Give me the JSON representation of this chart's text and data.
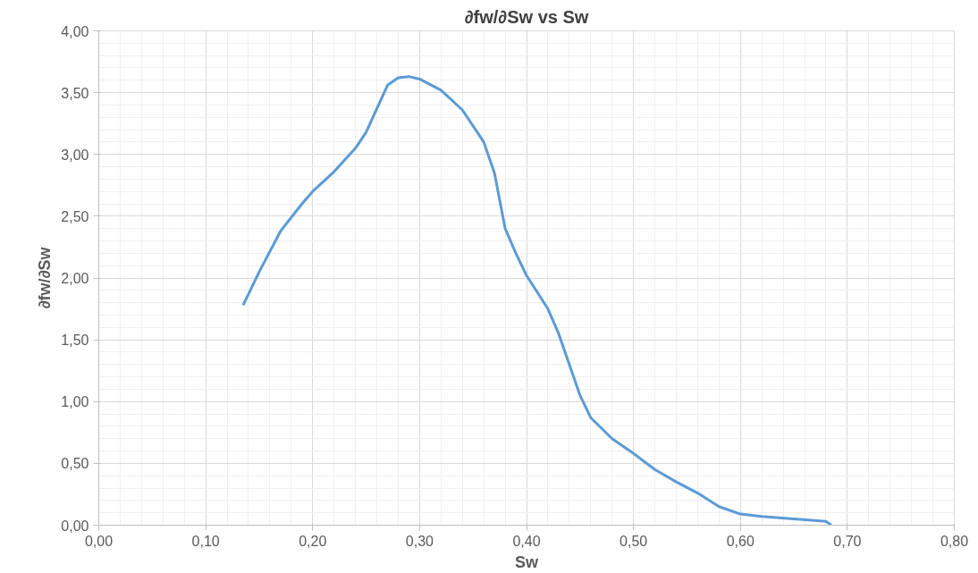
{
  "chart_data": {
    "type": "line",
    "title": "∂fw/∂Sw vs Sw",
    "xlabel": "Sw",
    "ylabel": "∂fw/∂Sw",
    "x": [
      0.135,
      0.15,
      0.17,
      0.19,
      0.2,
      0.22,
      0.24,
      0.25,
      0.26,
      0.27,
      0.28,
      0.29,
      0.3,
      0.32,
      0.34,
      0.36,
      0.37,
      0.38,
      0.39,
      0.4,
      0.42,
      0.43,
      0.45,
      0.46,
      0.48,
      0.5,
      0.52,
      0.54,
      0.56,
      0.58,
      0.6,
      0.62,
      0.65,
      0.68,
      0.685
    ],
    "series": [
      {
        "color": "#5b9bd5",
        "values": [
          1.78,
          2.05,
          2.38,
          2.6,
          2.7,
          2.86,
          3.05,
          3.18,
          3.37,
          3.56,
          3.62,
          3.63,
          3.61,
          3.52,
          3.36,
          3.1,
          2.85,
          2.4,
          2.2,
          2.02,
          1.75,
          1.55,
          1.05,
          0.87,
          0.7,
          0.58,
          0.45,
          0.35,
          0.26,
          0.15,
          0.09,
          0.07,
          0.05,
          0.03,
          0.0
        ]
      }
    ],
    "xlim": [
      0,
      0.8
    ],
    "ylim": [
      0,
      4
    ],
    "xticks": [
      {
        "value": 0,
        "label": "0,00"
      },
      {
        "value": 0.1,
        "label": "0,10"
      },
      {
        "value": 0.2,
        "label": "0,20"
      },
      {
        "value": 0.3,
        "label": "0,30"
      },
      {
        "value": 0.4,
        "label": "0,40"
      },
      {
        "value": 0.5,
        "label": "0,50"
      },
      {
        "value": 0.6,
        "label": "0,60"
      },
      {
        "value": 0.7,
        "label": "0,70"
      },
      {
        "value": 0.8,
        "label": "0,80"
      }
    ],
    "yticks": [
      {
        "value": 0,
        "label": "0,00"
      },
      {
        "value": 0.5,
        "label": "0,50"
      },
      {
        "value": 1,
        "label": "1,00"
      },
      {
        "value": 1.5,
        "label": "1,50"
      },
      {
        "value": 2,
        "label": "2,00"
      },
      {
        "value": 2.5,
        "label": "2,50"
      },
      {
        "value": 3,
        "label": "3,00"
      },
      {
        "value": 3.5,
        "label": "3,50"
      },
      {
        "value": 4,
        "label": "4,00"
      }
    ],
    "grid": true,
    "marker": "none",
    "line_style": "solid"
  }
}
